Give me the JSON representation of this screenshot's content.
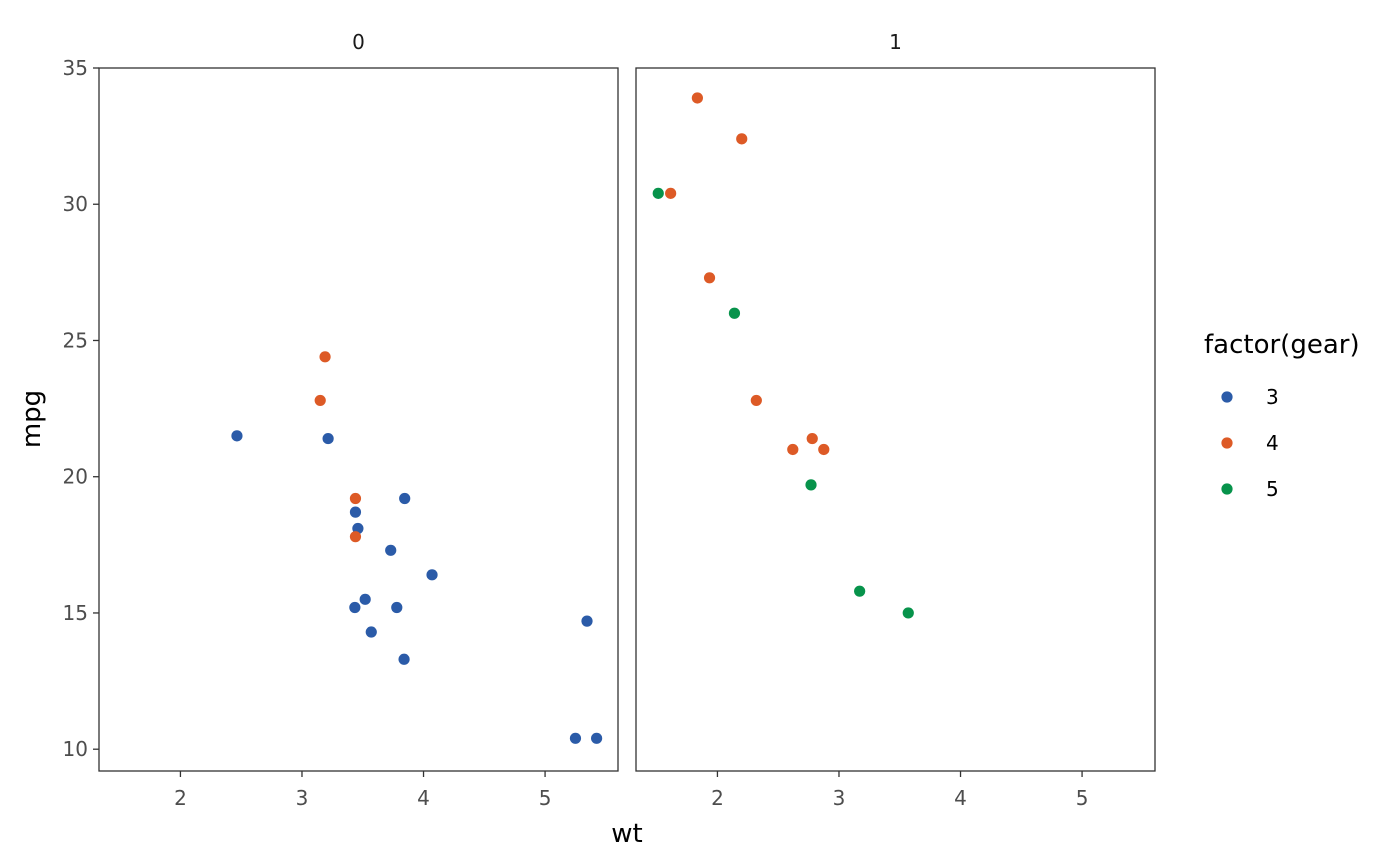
{
  "chart_data": {
    "type": "scatter",
    "xlabel": "wt",
    "ylabel": "mpg",
    "xlim": [
      1.33,
      5.6
    ],
    "ylim": [
      9.2,
      35.0
    ],
    "x_ticks": [
      2,
      3,
      4,
      5
    ],
    "y_ticks": [
      10,
      15,
      20,
      25,
      30,
      35
    ],
    "grid": false,
    "legend": {
      "title": "factor(gear)",
      "placement": "right",
      "entries": [
        {
          "label": "3",
          "color": "#2b5ba8"
        },
        {
          "label": "4",
          "color": "#dd5a26"
        },
        {
          "label": "5",
          "color": "#07934b"
        }
      ]
    },
    "panels": [
      {
        "label": "0",
        "points": [
          {
            "x": 2.465,
            "y": 21.5,
            "gear": "3"
          },
          {
            "x": 3.215,
            "y": 21.4,
            "gear": "3"
          },
          {
            "x": 3.44,
            "y": 18.7,
            "gear": "3"
          },
          {
            "x": 3.46,
            "y": 18.1,
            "gear": "3"
          },
          {
            "x": 3.57,
            "y": 14.3,
            "gear": "3"
          },
          {
            "x": 4.07,
            "y": 16.4,
            "gear": "3"
          },
          {
            "x": 3.73,
            "y": 17.3,
            "gear": "3"
          },
          {
            "x": 3.78,
            "y": 15.2,
            "gear": "3"
          },
          {
            "x": 5.25,
            "y": 10.4,
            "gear": "3"
          },
          {
            "x": 5.424,
            "y": 10.4,
            "gear": "3"
          },
          {
            "x": 5.345,
            "y": 14.7,
            "gear": "3"
          },
          {
            "x": 3.52,
            "y": 15.5,
            "gear": "3"
          },
          {
            "x": 3.435,
            "y": 15.2,
            "gear": "3"
          },
          {
            "x": 3.84,
            "y": 13.3,
            "gear": "3"
          },
          {
            "x": 3.845,
            "y": 19.2,
            "gear": "3"
          },
          {
            "x": 3.19,
            "y": 24.4,
            "gear": "4"
          },
          {
            "x": 3.15,
            "y": 22.8,
            "gear": "4"
          },
          {
            "x": 3.44,
            "y": 19.2,
            "gear": "4"
          },
          {
            "x": 3.44,
            "y": 17.8,
            "gear": "4"
          }
        ]
      },
      {
        "label": "1",
        "points": [
          {
            "x": 2.62,
            "y": 21.0,
            "gear": "4"
          },
          {
            "x": 2.875,
            "y": 21.0,
            "gear": "4"
          },
          {
            "x": 2.32,
            "y": 22.8,
            "gear": "4"
          },
          {
            "x": 2.2,
            "y": 32.4,
            "gear": "4"
          },
          {
            "x": 1.615,
            "y": 30.4,
            "gear": "4"
          },
          {
            "x": 1.835,
            "y": 33.9,
            "gear": "4"
          },
          {
            "x": 1.935,
            "y": 27.3,
            "gear": "4"
          },
          {
            "x": 2.78,
            "y": 21.4,
            "gear": "4"
          },
          {
            "x": 2.14,
            "y": 26.0,
            "gear": "5"
          },
          {
            "x": 1.513,
            "y": 30.4,
            "gear": "5"
          },
          {
            "x": 3.17,
            "y": 15.8,
            "gear": "5"
          },
          {
            "x": 2.77,
            "y": 19.7,
            "gear": "5"
          },
          {
            "x": 3.57,
            "y": 15.0,
            "gear": "5"
          }
        ]
      }
    ]
  }
}
